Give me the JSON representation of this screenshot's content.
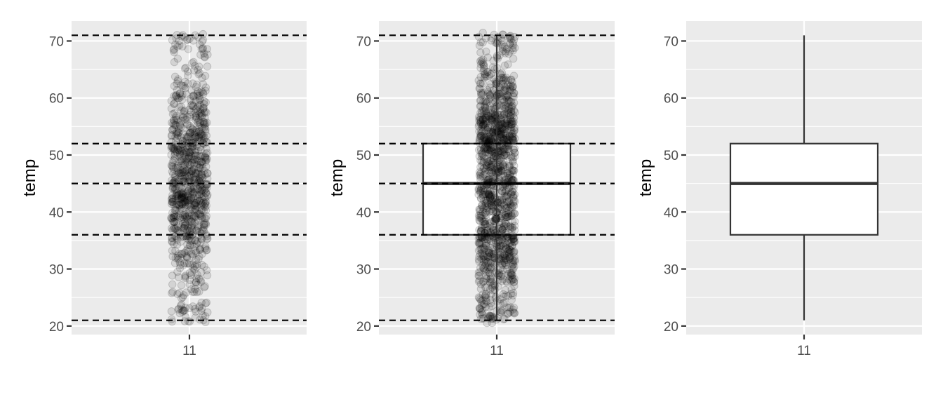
{
  "chart_data": [
    {
      "type": "scatter",
      "geoms": [
        "jitter",
        "hline"
      ],
      "ylabel": "temp",
      "xlabel": "",
      "categories": [
        "11"
      ],
      "ylim": [
        18.5,
        73.5
      ],
      "yticks": [
        20,
        30,
        40,
        50,
        60,
        70
      ],
      "point_alpha": 0.1,
      "point_count": 900,
      "y_range_of_points": [
        20.5,
        71.5
      ],
      "reference_lines": [
        21,
        36,
        45,
        52,
        71
      ],
      "reference_line_style": "dashed",
      "grid": true
    },
    {
      "type": "box",
      "geoms": [
        "jitter",
        "boxplot",
        "hline"
      ],
      "ylabel": "temp",
      "xlabel": "",
      "categories": [
        "11"
      ],
      "ylim": [
        18.5,
        73.5
      ],
      "yticks": [
        20,
        30,
        40,
        50,
        60,
        70
      ],
      "box": {
        "min": 21,
        "q1": 36,
        "median": 45,
        "q3": 52,
        "max": 71
      },
      "box_fill": "#ffffff",
      "point_alpha": 0.1,
      "point_count": 900,
      "y_range_of_points": [
        20.5,
        71.5
      ],
      "reference_lines": [
        21,
        36,
        45,
        52,
        71
      ],
      "reference_line_style": "dashed",
      "grid": true
    },
    {
      "type": "box",
      "geoms": [
        "boxplot"
      ],
      "ylabel": "temp",
      "xlabel": "",
      "categories": [
        "11"
      ],
      "ylim": [
        18.5,
        73.5
      ],
      "yticks": [
        20,
        30,
        40,
        50,
        60,
        70
      ],
      "box": {
        "min": 21,
        "q1": 36,
        "median": 45,
        "q3": 52,
        "max": 71
      },
      "box_fill": "#ffffff",
      "grid": true
    }
  ],
  "colors": {
    "panel_background": "#ebebeb",
    "grid": "#ffffff",
    "tick": "#333333",
    "tick_label": "#4d4d4d",
    "point": "#000000",
    "box_line": "#333333",
    "reference_line": "#000000"
  }
}
